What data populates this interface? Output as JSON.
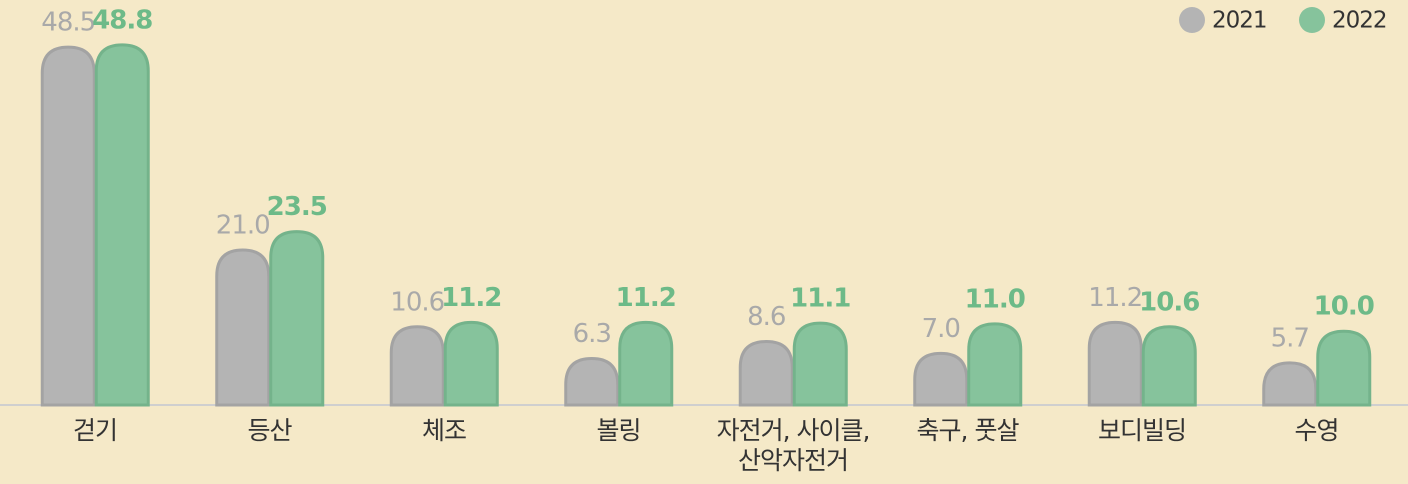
{
  "chart_data": {
    "type": "bar",
    "categories": [
      "걷기",
      "등산",
      "체조",
      "볼링",
      "자전거, 사이클,\n산악자전거",
      "축구, 풋살",
      "보디빌딩",
      "수영"
    ],
    "series": [
      {
        "name": "2021",
        "color": "#b4b4b4",
        "label_color": "#a9a9a9",
        "values": [
          48.5,
          21.0,
          10.6,
          6.3,
          8.6,
          7.0,
          11.2,
          5.7
        ],
        "value_labels": [
          "48.5",
          "21.0",
          "10.6",
          "6.3",
          "8.6",
          "7.0",
          "11.2",
          "5.7"
        ]
      },
      {
        "name": "2022",
        "color": "#86c39c",
        "label_color": "#6dba88",
        "values": [
          48.8,
          23.5,
          11.2,
          11.2,
          11.1,
          11.0,
          10.6,
          10.0
        ],
        "value_labels": [
          "48.8",
          "23.5",
          "11.2",
          "11.2",
          "11.1",
          "11.0",
          "10.6",
          "10.0"
        ]
      }
    ],
    "ylim": [
      0,
      50
    ],
    "legend": "top-right"
  }
}
